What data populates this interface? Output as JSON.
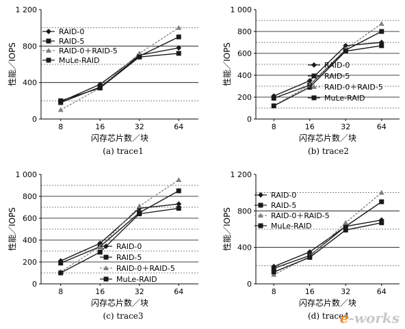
{
  "colors": {
    "axis": "#000000",
    "grid": "#000000",
    "series_dark": "#1a1a1a",
    "series_gray": "#808080"
  },
  "chart_data": [
    {
      "type": "line",
      "caption": "(a)  trace1",
      "xlabel": "闪存芯片数／块",
      "ylabel": "性能／IOPS",
      "categories": [
        "8",
        "16",
        "32",
        "64"
      ],
      "ylim": [
        0,
        1200
      ],
      "yticks": [
        "0",
        "400",
        "800",
        "1 200"
      ],
      "ytick_values": [
        0,
        400,
        800,
        1200
      ],
      "legend_position": "top-left",
      "series": [
        {
          "name": "RAID-0",
          "marker": "diamond",
          "color": "#1a1a1a",
          "dashed": false,
          "values": [
            190,
            380,
            700,
            780
          ]
        },
        {
          "name": "RAID-5",
          "marker": "square",
          "color": "#1a1a1a",
          "dashed": false,
          "values": [
            180,
            350,
            690,
            900
          ]
        },
        {
          "name": "RAID-0＋RAID-5",
          "marker": "triangle",
          "color": "#808080",
          "dashed": true,
          "values": [
            100,
            340,
            720,
            1000
          ]
        },
        {
          "name": "MuLe-RAID",
          "marker": "square",
          "color": "#1a1a1a",
          "dashed": false,
          "values": [
            200,
            340,
            680,
            720
          ]
        }
      ]
    },
    {
      "type": "line",
      "caption": "(b)  trace2",
      "xlabel": "闪存芯片数／块",
      "ylabel": "性能／IOPS",
      "categories": [
        "8",
        "16",
        "32",
        "64"
      ],
      "ylim": [
        0,
        1000
      ],
      "yticks": [
        "0",
        "200",
        "400",
        "600",
        "800",
        "1 000"
      ],
      "ytick_values": [
        0,
        200,
        400,
        600,
        800,
        1000
      ],
      "legend_position": "bottom-right",
      "series": [
        {
          "name": "RAID-0",
          "marker": "diamond",
          "color": "#1a1a1a",
          "dashed": false,
          "values": [
            210,
            350,
            670,
            700
          ]
        },
        {
          "name": "RAID-5",
          "marker": "square",
          "color": "#1a1a1a",
          "dashed": false,
          "values": [
            190,
            310,
            630,
            800
          ]
        },
        {
          "name": "RAID-0＋RAID-5",
          "marker": "triangle",
          "color": "#808080",
          "dashed": true,
          "values": [
            120,
            310,
            640,
            870
          ]
        },
        {
          "name": "MuLe-RAID",
          "marker": "square",
          "color": "#1a1a1a",
          "dashed": false,
          "values": [
            120,
            290,
            620,
            670
          ]
        }
      ]
    },
    {
      "type": "line",
      "caption": "(c)  trace3",
      "xlabel": "闪存芯片数／块",
      "ylabel": "性能／IOPS",
      "categories": [
        "8",
        "16",
        "32",
        "64"
      ],
      "ylim": [
        0,
        1000
      ],
      "yticks": [
        "0",
        "200",
        "400",
        "600",
        "800",
        "1 000"
      ],
      "ytick_values": [
        0,
        200,
        400,
        600,
        800,
        1000
      ],
      "legend_position": "bottom-right",
      "series": [
        {
          "name": "RAID-0",
          "marker": "diamond",
          "color": "#1a1a1a",
          "dashed": false,
          "values": [
            210,
            370,
            690,
            730
          ]
        },
        {
          "name": "RAID-5",
          "marker": "square",
          "color": "#1a1a1a",
          "dashed": false,
          "values": [
            190,
            340,
            650,
            850
          ]
        },
        {
          "name": "RAID-0＋RAID-5",
          "marker": "triangle",
          "color": "#808080",
          "dashed": true,
          "values": [
            110,
            340,
            710,
            950
          ]
        },
        {
          "name": "MuLe-RAID",
          "marker": "square",
          "color": "#1a1a1a",
          "dashed": false,
          "values": [
            100,
            290,
            640,
            690
          ]
        }
      ]
    },
    {
      "type": "line",
      "caption": "(d)  trace4",
      "xlabel": "闪存芯片数／块",
      "ylabel": "性能／IOPS",
      "categories": [
        "8",
        "16",
        "32",
        "64"
      ],
      "ylim": [
        0,
        1200
      ],
      "yticks": [
        "0",
        "400",
        "800",
        "1 200"
      ],
      "ytick_values": [
        0,
        400,
        800,
        1200
      ],
      "legend_position": "top-left",
      "series": [
        {
          "name": "RAID-0",
          "marker": "diamond",
          "color": "#1a1a1a",
          "dashed": false,
          "values": [
            190,
            350,
            630,
            700
          ]
        },
        {
          "name": "RAID-5",
          "marker": "square",
          "color": "#1a1a1a",
          "dashed": false,
          "values": [
            170,
            310,
            630,
            900
          ]
        },
        {
          "name": "RAID-0＋RAID-5",
          "marker": "triangle",
          "color": "#808080",
          "dashed": true,
          "values": [
            100,
            300,
            670,
            1000
          ]
        },
        {
          "name": "MuLe-RAID",
          "marker": "square",
          "color": "#1a1a1a",
          "dashed": false,
          "values": [
            130,
            290,
            590,
            670
          ]
        }
      ]
    }
  ],
  "watermark": {
    "e": "e",
    "rest": "-works"
  }
}
